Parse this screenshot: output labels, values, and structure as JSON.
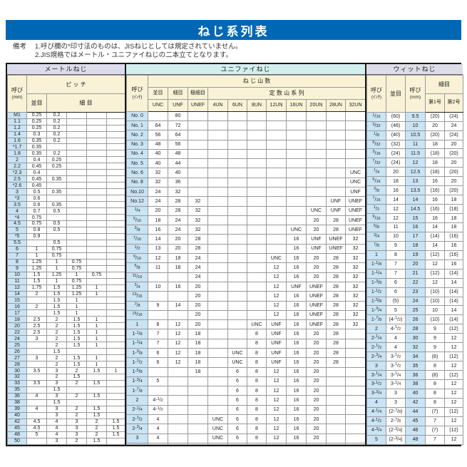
{
  "page": {
    "title": "ねじ系列表",
    "notes_label": "備考",
    "notes": [
      "1.呼び欄の*印寸法のものは、JISねじとしては規定されていません。",
      "2.JIS規格ではメートル・ユニファイねじの二本立てとなります。"
    ]
  },
  "colors": {
    "title_bar_blue": "#0067b5",
    "metric_band": "#dddcec",
    "unified_band": "#d4efee",
    "whitworth_band": "#dcdde6",
    "header_cell_cream": "#f9f2d6",
    "designation_col_blue": "#c9e4f4"
  },
  "metric": {
    "section_title": "メートルねじ",
    "headers": {
      "designation": "呼び",
      "designation_unit": "(mm)",
      "pitch": "ピ ッ チ",
      "coarse": "並目",
      "fine": "細 目"
    },
    "groups": [
      [
        [
          "M1",
          "0.25",
          "0.2",
          "",
          "",
          ""
        ],
        [
          "1.1",
          "0.25",
          "0.2",
          "",
          "",
          ""
        ],
        [
          "1.2",
          "0.25",
          "0.2",
          "",
          "",
          ""
        ],
        [
          "1.4",
          "0.3",
          "0.2",
          "",
          "",
          ""
        ],
        [
          "1.6",
          "0.35",
          "0.2",
          "",
          "",
          ""
        ]
      ],
      [
        [
          "*1.7",
          "0.35",
          "",
          "",
          "",
          ""
        ],
        [
          "1.8",
          "0.35",
          "0.2",
          "",
          "",
          ""
        ],
        [
          "2",
          "0.4",
          "0.25",
          "",
          "",
          ""
        ],
        [
          "2.2",
          "0.45",
          "0.25",
          "",
          "",
          ""
        ],
        [
          "*2.3",
          "0.4",
          "",
          "",
          "",
          ""
        ]
      ],
      [
        [
          "2.5",
          "0.45",
          "0.35",
          "",
          "",
          ""
        ],
        [
          "*2.6",
          "0.45",
          "",
          "",
          "",
          ""
        ],
        [
          "3",
          "0.5",
          "0.35",
          "",
          "",
          ""
        ],
        [
          "*3",
          "0.6",
          "",
          "",
          "",
          ""
        ],
        [
          "3.5",
          "0.6",
          "0.35",
          "",
          "",
          ""
        ]
      ],
      [
        [
          "4",
          "0.7",
          "0.5",
          "",
          "",
          ""
        ],
        [
          "*4",
          "0.75",
          "",
          "",
          "",
          ""
        ],
        [
          "4.5",
          "0.75",
          "0.5",
          "",
          "",
          ""
        ],
        [
          "5",
          "0.8",
          "0.5",
          "",
          "",
          ""
        ],
        [
          "*5",
          "0.9",
          "",
          "",
          "",
          ""
        ]
      ],
      [
        [
          "5.5",
          "",
          "0.5",
          "",
          "",
          ""
        ],
        [
          "6",
          "1",
          "0.75",
          "",
          "",
          ""
        ],
        [
          "7",
          "1",
          "0.75",
          "",
          "",
          ""
        ],
        [
          "8",
          "1.25",
          "1",
          "0.75",
          "",
          ""
        ],
        [
          "9",
          "1.25",
          "1",
          "0.75",
          "",
          ""
        ]
      ],
      [
        [
          "10",
          "1.5",
          "1.25",
          "1",
          "0.75",
          ""
        ],
        [
          "11",
          "1.5",
          "1",
          "0.75",
          "",
          ""
        ],
        [
          "12",
          "1.75",
          "1.5",
          "1.25",
          "1",
          ""
        ],
        [
          "14",
          "2",
          "1.5",
          "1.25",
          "1",
          ""
        ],
        [
          "15",
          "",
          "1.5",
          "1",
          "",
          ""
        ]
      ],
      [
        [
          "16",
          "2",
          "1.5",
          "1",
          "",
          ""
        ],
        [
          "17",
          "",
          "1.5",
          "1",
          "",
          ""
        ],
        [
          "18",
          "2.5",
          "2",
          "1.5",
          "1",
          ""
        ],
        [
          "20",
          "2.5",
          "2",
          "1.5",
          "1",
          ""
        ],
        [
          "22",
          "2.5",
          "2",
          "1.5",
          "1",
          ""
        ]
      ],
      [
        [
          "24",
          "3",
          "2",
          "1.5",
          "1",
          ""
        ],
        [
          "25",
          "",
          "2",
          "1.5",
          "1",
          ""
        ],
        [
          "26",
          "",
          "1.5",
          "",
          "",
          ""
        ],
        [
          "27",
          "3",
          "2",
          "1.5",
          "1",
          ""
        ],
        [
          "28",
          "",
          "2",
          "1.5",
          "1",
          ""
        ]
      ],
      [
        [
          "30",
          "3.5",
          "3",
          "2",
          "1.5",
          "1"
        ],
        [
          "32",
          "",
          "2",
          "1.5",
          "",
          ""
        ],
        [
          "33",
          "3.5",
          "3",
          "2",
          "1.5",
          ""
        ],
        [
          "35",
          "",
          "1.5",
          "",
          "",
          ""
        ],
        [
          "36",
          "4",
          "3",
          "2",
          "1.5",
          ""
        ]
      ],
      [
        [
          "38",
          "",
          "1.5",
          "",
          "",
          ""
        ],
        [
          "39",
          "4",
          "3",
          "2",
          "1.5",
          ""
        ],
        [
          "40",
          "",
          "3",
          "2",
          "1.5",
          ""
        ],
        [
          "42",
          "4.5",
          "4",
          "3",
          "2",
          "1.5"
        ],
        [
          "45",
          "4.5",
          "4",
          "3",
          "2",
          "1.5"
        ]
      ],
      [
        [
          "48",
          "5",
          "4",
          "3",
          "2",
          "1.5"
        ],
        [
          "50",
          "",
          "3",
          "2",
          "1.5",
          ""
        ]
      ]
    ]
  },
  "unified": {
    "section_title": "ユニファイねじ",
    "headers": {
      "designation": "呼び",
      "designation_unit": "(ｲﾝﾁ)",
      "threads": "ね じ 山 数",
      "coarse": "並目",
      "fine": "細目",
      "extra_fine": "極細目",
      "unc": "UNC",
      "unf": "UNF",
      "unef": "UNEF",
      "constant_series": "定 数 山 系 列",
      "un_cols": [
        "4UN",
        "6UN",
        "8UN",
        "12UN",
        "16UN",
        "20UN",
        "28UN",
        "32UN"
      ]
    },
    "groups": [
      [
        [
          "No. 0",
          "",
          "80",
          "",
          "",
          "",
          "",
          "",
          "",
          "",
          "",
          ""
        ],
        [
          "No. 1",
          "64",
          "72",
          "",
          "",
          "",
          "",
          "",
          "",
          "",
          "",
          ""
        ],
        [
          "No. 2",
          "56",
          "64",
          "",
          "",
          "",
          "",
          "",
          "",
          "",
          "",
          ""
        ]
      ],
      [
        [
          "No. 3",
          "48",
          "56",
          "",
          "",
          "",
          "",
          "",
          "",
          "",
          "",
          ""
        ],
        [
          "No. 4",
          "40",
          "48",
          "",
          "",
          "",
          "",
          "",
          "",
          "",
          "",
          ""
        ],
        [
          "No. 5",
          "40",
          "44",
          "",
          "",
          "",
          "",
          "",
          "",
          "",
          "",
          ""
        ]
      ],
      [
        [
          "No. 6",
          "32",
          "40",
          "",
          "",
          "",
          "",
          "",
          "",
          "",
          "",
          "UNC"
        ],
        [
          "No. 8",
          "32",
          "36",
          "",
          "",
          "",
          "",
          "",
          "",
          "",
          "",
          "UNC"
        ],
        [
          "No.10",
          "24",
          "32",
          "",
          "",
          "",
          "",
          "",
          "",
          "",
          "",
          "UNF"
        ]
      ],
      [
        [
          "No.12",
          "24",
          "28",
          "32",
          "",
          "",
          "",
          "",
          "",
          "",
          "UNF",
          "UNEF"
        ],
        [
          "1/4",
          "20",
          "28",
          "32",
          "",
          "",
          "",
          "",
          "",
          "UNC",
          "UNF",
          "UNEF"
        ],
        [
          "5/16",
          "18",
          "24",
          "32",
          "",
          "",
          "",
          "",
          "",
          "20",
          "28",
          "UNEF"
        ]
      ],
      [
        [
          "3/8",
          "16",
          "24",
          "32",
          "",
          "",
          "",
          "",
          "UNC",
          "20",
          "28",
          "UNEF"
        ],
        [
          "7/16",
          "14",
          "20",
          "28",
          "",
          "",
          "",
          "",
          "16",
          "UNF",
          "UNEF",
          "32"
        ],
        [
          "1/2",
          "13",
          "20",
          "28",
          "",
          "",
          "",
          "",
          "16",
          "UNF",
          "UNEF",
          "32"
        ]
      ],
      [
        [
          "9/16",
          "12",
          "18",
          "24",
          "",
          "",
          "",
          "UNC",
          "16",
          "20",
          "28",
          "32"
        ],
        [
          "5/8",
          "11",
          "18",
          "24",
          "",
          "",
          "",
          "12",
          "16",
          "20",
          "28",
          "32"
        ],
        [
          "11/16",
          "",
          "",
          "24",
          "",
          "",
          "",
          "12",
          "16",
          "20",
          "28",
          "32"
        ]
      ],
      [
        [
          "3/4",
          "10",
          "16",
          "20",
          "",
          "",
          "",
          "12",
          "UNF",
          "UNEF",
          "28",
          "32"
        ],
        [
          "13/16",
          "",
          "",
          "20",
          "",
          "",
          "",
          "12",
          "16",
          "UNEF",
          "28",
          "32"
        ],
        [
          "7/8",
          "9",
          "14",
          "20",
          "",
          "",
          "",
          "12",
          "16",
          "UNEF",
          "28",
          "32"
        ]
      ],
      [
        [
          "15/16",
          "",
          "",
          "20",
          "",
          "",
          "",
          "12",
          "16",
          "UNEF",
          "28",
          "32"
        ],
        [
          "1",
          "8",
          "12",
          "20",
          "",
          "",
          "UNC",
          "UNF",
          "16",
          "UNEF",
          "28",
          "32"
        ],
        [
          "1-1/8",
          "7",
          "12",
          "18",
          "",
          "",
          "8",
          "UNF",
          "16",
          "20",
          "28",
          ""
        ]
      ],
      [
        [
          "1-1/4",
          "7",
          "12",
          "18",
          "",
          "",
          "8",
          "UNF",
          "16",
          "20",
          "28",
          ""
        ],
        [
          "1-3/8",
          "6",
          "12",
          "18",
          "",
          "UNC",
          "8",
          "UNF",
          "16",
          "20",
          "28",
          ""
        ],
        [
          "1-1/2",
          "6",
          "12",
          "18",
          "",
          "UNC",
          "8",
          "UNF",
          "16",
          "20",
          "28",
          ""
        ]
      ],
      [
        [
          "1-5/8",
          "",
          "",
          "18",
          "",
          "6",
          "8",
          "12",
          "16",
          "20",
          "",
          ""
        ],
        [
          "1-3/4",
          "5",
          "",
          "",
          "",
          "6",
          "8",
          "12",
          "16",
          "20",
          "",
          ""
        ],
        [
          "1-7/8",
          "",
          "",
          "",
          "",
          "6",
          "8",
          "12",
          "16",
          "20",
          "",
          ""
        ]
      ],
      [
        [
          "2",
          "4-1/2",
          "",
          "",
          "",
          "6",
          "8",
          "12",
          "16",
          "20",
          "",
          ""
        ],
        [
          "2-1/4",
          "4-1/2",
          "",
          "",
          "",
          "6",
          "8",
          "12",
          "16",
          "20",
          "",
          ""
        ],
        [
          "2-1/2",
          "4",
          "",
          "",
          "UNC",
          "6",
          "8",
          "12",
          "16",
          "20",
          "",
          ""
        ]
      ],
      [
        [
          "2-3/4",
          "4",
          "",
          "",
          "UNC",
          "6",
          "8",
          "12",
          "16",
          "20",
          "",
          ""
        ],
        [
          "3",
          "4",
          "",
          "",
          "UNC",
          "6",
          "8",
          "12",
          "16",
          "20",
          "",
          ""
        ],
        [
          "",
          "",
          "",
          "",
          "",
          "",
          "",
          "",
          "",
          "",
          "",
          ""
        ]
      ]
    ]
  },
  "whitworth": {
    "section_title": "ウィットねじ",
    "headers": {
      "designation_inch": "呼び",
      "designation_inch_unit": "(ｲﾝﾁ)",
      "coarse": "並目",
      "designation_mm": "呼び",
      "designation_mm_unit": "(mm)",
      "fine": "細目",
      "fine_no1": "第1号",
      "fine_no2": "第2号"
    },
    "groups": [
      [
        [
          "1/16",
          "(60)",
          "9.5",
          "(20)",
          "(24)"
        ],
        [
          "3/32",
          "(48)",
          "10",
          "20",
          "24"
        ],
        [
          "1/8",
          "(40)",
          "10.5",
          "(20)",
          "(24)"
        ]
      ],
      [
        [
          "5/32",
          "(32)",
          "11",
          "18",
          "20"
        ],
        [
          "3/16",
          "(24)",
          "11.5",
          "(18)",
          "(20)"
        ],
        [
          "7/32",
          "(24)",
          "12",
          "18",
          "20"
        ]
      ],
      [
        [
          "1/4",
          "20",
          "12.5",
          "(18)",
          "(20)"
        ],
        [
          "5/16",
          "18",
          "13",
          "16",
          "20"
        ],
        [
          "3/8",
          "16",
          "13.5",
          "(16)",
          "(20)"
        ]
      ],
      [
        [
          "7/16",
          "14",
          "14",
          "16",
          "18"
        ],
        [
          "1/2",
          "12",
          "14.5",
          "(16)",
          "(18)"
        ],
        [
          "9/16",
          "12",
          "15",
          "16",
          "18"
        ]
      ],
      [
        [
          "5/8",
          "11",
          "16",
          "14",
          "18"
        ],
        [
          "3/4",
          "10",
          "17",
          "(14)",
          "(16)"
        ],
        [
          "7/8",
          "9",
          "18",
          "14",
          "16"
        ]
      ],
      [
        [
          "1",
          "8",
          "19",
          "(12)",
          "(16)"
        ],
        [
          "1-1/8",
          "7",
          "20",
          "12",
          "16"
        ],
        [
          "1-1/4",
          "7",
          "21",
          "(12)",
          "(14)"
        ]
      ],
      [
        [
          "1-3/8",
          "6",
          "22",
          "12",
          "14"
        ],
        [
          "1-1/2",
          "6",
          "23",
          "(10)",
          "(14)"
        ],
        [
          "1-5/8",
          "(5)",
          "24",
          "(10)",
          "(14)"
        ]
      ],
      [
        [
          "1-3/4",
          "5",
          "25",
          "10",
          "14"
        ],
        [
          "1-7/8",
          "(4-1/2)",
          "26",
          "(10)",
          "(14)"
        ],
        [
          "2",
          "4-1/2",
          "28",
          "9",
          "(12)"
        ]
      ],
      [
        [
          "2-1/4",
          "4",
          "30",
          "9",
          "12"
        ],
        [
          "2-1/2",
          "4",
          "32",
          "9",
          "12"
        ],
        [
          "2-3/4",
          "3-1/2",
          "34",
          "(8)",
          "(12)"
        ]
      ],
      [
        [
          "3",
          "3-1/2",
          "35",
          "8",
          "12"
        ],
        [
          "3-1/4",
          "3-1/4",
          "36",
          "(8)",
          "(12)"
        ],
        [
          "3-1/2",
          "3-1/4",
          "38",
          "8",
          "12"
        ]
      ],
      [
        [
          "3-3/4",
          "3",
          "40",
          "8",
          "12"
        ],
        [
          "4",
          "3",
          "42",
          "8",
          "12"
        ],
        [
          "4-1/4",
          "(2-7/8)",
          "44",
          "(7)",
          "(12)"
        ]
      ],
      [
        [
          "4-1/2",
          "2-7/8",
          "45",
          "7",
          "12"
        ],
        [
          "4-3/4",
          "(2-3/4)",
          "46",
          "(7)",
          "(12)"
        ],
        [
          "5",
          "(2-3/4)",
          "48",
          "7",
          "12"
        ]
      ]
    ]
  }
}
